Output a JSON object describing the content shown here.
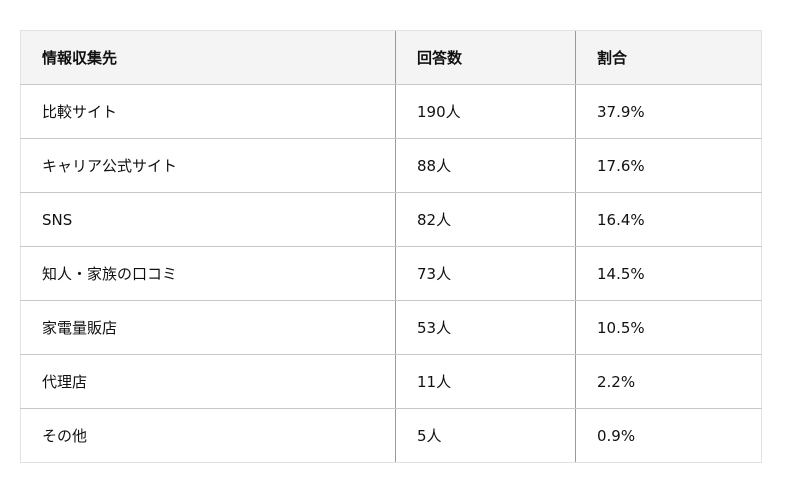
{
  "table": {
    "headers": [
      "情報収集先",
      "回答数",
      "割合"
    ],
    "rows": [
      [
        "比較サイト",
        "190人",
        "37.9%"
      ],
      [
        "キャリア公式サイト",
        "88人",
        "17.6%"
      ],
      [
        "SNS",
        "82人",
        "16.4%"
      ],
      [
        "知人・家族の口コミ",
        "73人",
        "14.5%"
      ],
      [
        "家電量販店",
        "53人",
        "10.5%"
      ],
      [
        "代理店",
        "11人",
        "2.2%"
      ],
      [
        "その他",
        "5人",
        "0.9%"
      ]
    ]
  }
}
